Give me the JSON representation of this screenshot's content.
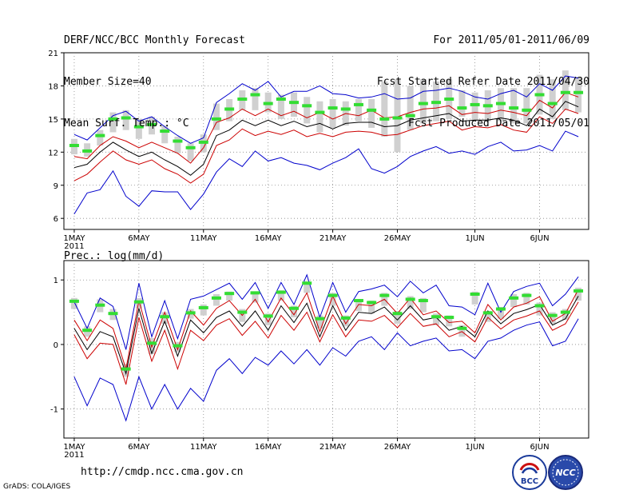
{
  "header": {
    "title": "DERF/NCC/BCC Monthly Forecast",
    "member_size": "Member Size=40",
    "variable": "Mean Surf. Temp.: °C",
    "period": "For 2011/05/01-2011/06/09",
    "refer_date": "Fcst Started Refer Date 2011/04/30",
    "produced_date": "Fcst Produced Date 2011/05/01"
  },
  "footer": {
    "url": "http://cmdp.ncc.cma.gov.cn",
    "credit": "GrADS: COLA/IGES",
    "logo_bcc": "BCC",
    "logo_ncc": "NCC"
  },
  "colors": {
    "ensemble_max_min": "#0000cc",
    "spread_band": "#cc0000",
    "ensemble_mean": "#000000",
    "observed_marker": "#33dd33",
    "member_range_bar": "#d0d0d0",
    "grid": "#888888"
  },
  "chart_data": [
    {
      "type": "line",
      "title": "Mean Surf. Temp.: °C",
      "x": [
        1,
        2,
        3,
        4,
        5,
        6,
        7,
        8,
        9,
        10,
        11,
        12,
        13,
        14,
        15,
        16,
        17,
        18,
        19,
        20,
        21,
        22,
        23,
        24,
        25,
        26,
        27,
        28,
        29,
        30,
        31,
        32,
        33,
        34,
        35,
        36,
        37,
        38,
        39,
        40
      ],
      "xtick_labels": [
        "1MAY",
        "6MAY",
        "11MAY",
        "16MAY",
        "21MAY",
        "26MAY",
        "1JUN",
        "6JUN"
      ],
      "xtick_positions": [
        1,
        6,
        11,
        16,
        21,
        26,
        32,
        37
      ],
      "year_label": "2011",
      "ylim": [
        5,
        21
      ],
      "yticks": [
        6,
        9,
        12,
        15,
        18,
        21
      ],
      "series": [
        {
          "name": "max",
          "values": [
            13.6,
            13.1,
            14.2,
            15.3,
            15.7,
            14.8,
            15.2,
            14.3,
            13.5,
            12.8,
            13.3,
            16.5,
            17.3,
            18.2,
            17.6,
            18.4,
            17.0,
            17.5,
            17.5,
            18.0,
            17.3,
            17.2,
            16.9,
            17.0,
            17.3,
            16.8,
            16.9,
            17.5,
            17.6,
            17.8,
            17.5,
            17.0,
            16.8,
            17.3,
            17.6,
            17.0,
            18.2,
            17.6,
            18.9,
            18.7
          ]
        },
        {
          "name": "upper",
          "values": [
            11.6,
            11.4,
            12.6,
            13.4,
            13.0,
            12.4,
            12.9,
            12.4,
            11.9,
            11.0,
            12.4,
            14.7,
            15.1,
            15.9,
            15.3,
            15.9,
            15.3,
            15.7,
            15.1,
            15.6,
            15.0,
            15.5,
            15.3,
            15.8,
            15.1,
            15.2,
            15.6,
            15.9,
            16.0,
            16.2,
            15.4,
            15.6,
            15.5,
            15.8,
            15.6,
            15.3,
            16.7,
            16.0,
            17.4,
            17.0
          ]
        },
        {
          "name": "mean",
          "values": [
            10.6,
            10.9,
            12.0,
            12.9,
            12.2,
            11.6,
            12.0,
            11.3,
            10.7,
            9.9,
            10.9,
            13.5,
            14.0,
            14.9,
            14.4,
            14.9,
            14.4,
            14.8,
            14.3,
            14.6,
            14.1,
            14.6,
            14.7,
            14.7,
            14.3,
            14.4,
            14.9,
            15.1,
            15.3,
            15.5,
            14.8,
            14.9,
            14.9,
            15.1,
            14.9,
            14.4,
            15.9,
            15.2,
            16.6,
            16.1
          ]
        },
        {
          "name": "lower",
          "values": [
            9.4,
            10.0,
            11.1,
            12.1,
            11.3,
            10.9,
            11.3,
            10.5,
            10.0,
            9.2,
            10.0,
            12.6,
            13.1,
            14.1,
            13.5,
            13.9,
            13.6,
            14.0,
            13.4,
            13.7,
            13.4,
            13.8,
            13.9,
            13.8,
            13.5,
            13.6,
            14.0,
            14.4,
            14.6,
            14.8,
            14.0,
            14.3,
            14.2,
            14.5,
            14.0,
            13.8,
            15.2,
            14.6,
            15.9,
            15.5
          ]
        },
        {
          "name": "min",
          "values": [
            6.4,
            8.3,
            8.6,
            10.3,
            8.0,
            7.1,
            8.5,
            8.4,
            8.4,
            6.8,
            8.2,
            10.2,
            11.4,
            10.7,
            12.1,
            11.2,
            11.5,
            11.0,
            10.8,
            10.4,
            11.0,
            11.5,
            12.3,
            10.5,
            10.1,
            10.7,
            11.6,
            12.1,
            12.5,
            11.9,
            12.1,
            11.8,
            12.5,
            12.9,
            12.1,
            12.2,
            12.6,
            12.1,
            13.9,
            13.4
          ]
        },
        {
          "name": "observed",
          "values": [
            12.6,
            12.1,
            13.5,
            15.0,
            15.1,
            14.3,
            14.5,
            13.9,
            13.0,
            12.4,
            12.9,
            15.0,
            15.9,
            16.8,
            17.2,
            16.4,
            16.8,
            16.5,
            16.2,
            15.6,
            16.0,
            15.9,
            16.3,
            15.8,
            15.0,
            15.1,
            15.3,
            16.4,
            16.5,
            16.8,
            16.0,
            16.3,
            16.2,
            16.4,
            16.0,
            15.8,
            17.2,
            16.4,
            17.4,
            17.4
          ]
        }
      ],
      "range_bars": [
        [
          11.8,
          13.2
        ],
        [
          11.6,
          12.8
        ],
        [
          12.6,
          14.0
        ],
        [
          13.8,
          15.6
        ],
        [
          14.0,
          15.8
        ],
        [
          13.2,
          15.0
        ],
        [
          13.6,
          15.2
        ],
        [
          12.8,
          14.4
        ],
        [
          11.9,
          13.4
        ],
        [
          11.2,
          12.8
        ],
        [
          12.0,
          13.6
        ],
        [
          14.0,
          16.4
        ],
        [
          14.8,
          16.8
        ],
        [
          15.8,
          17.6
        ],
        [
          15.8,
          17.8
        ],
        [
          15.6,
          17.4
        ],
        [
          15.0,
          17.2
        ],
        [
          15.2,
          17.4
        ],
        [
          14.6,
          17.0
        ],
        [
          13.8,
          16.6
        ],
        [
          14.2,
          16.8
        ],
        [
          14.4,
          16.6
        ],
        [
          14.8,
          16.8
        ],
        [
          14.2,
          16.8
        ],
        [
          13.4,
          18.4
        ],
        [
          12.0,
          18.6
        ],
        [
          14.0,
          18.0
        ],
        [
          14.6,
          18.6
        ],
        [
          14.8,
          18.4
        ],
        [
          15.0,
          18.6
        ],
        [
          15.2,
          17.6
        ],
        [
          14.8,
          17.4
        ],
        [
          14.8,
          17.6
        ],
        [
          14.8,
          17.8
        ],
        [
          14.6,
          17.8
        ],
        [
          14.6,
          17.8
        ],
        [
          15.4,
          19.0
        ],
        [
          15.0,
          18.6
        ],
        [
          15.8,
          19.4
        ],
        [
          15.6,
          18.8
        ]
      ]
    },
    {
      "type": "line",
      "title": "Prec.: log(mm/d)",
      "x": [
        1,
        2,
        3,
        4,
        5,
        6,
        7,
        8,
        9,
        10,
        11,
        12,
        13,
        14,
        15,
        16,
        17,
        18,
        19,
        20,
        21,
        22,
        23,
        24,
        25,
        26,
        27,
        28,
        29,
        30,
        31,
        32,
        33,
        34,
        35,
        36,
        37,
        38,
        39,
        40
      ],
      "xtick_labels": [
        "1MAY",
        "6MAY",
        "11MAY",
        "16MAY",
        "21MAY",
        "26MAY",
        "1JUN",
        "6JUN"
      ],
      "xtick_positions": [
        1,
        6,
        11,
        16,
        21,
        26,
        32,
        37
      ],
      "year_label": "2011",
      "ylim": [
        -1.45,
        1.3
      ],
      "yticks": [
        -1,
        0,
        1
      ],
      "series": [
        {
          "name": "max",
          "values": [
            0.66,
            0.25,
            0.72,
            0.59,
            -0.08,
            0.95,
            0.12,
            0.68,
            0.09,
            0.7,
            0.75,
            0.85,
            0.95,
            0.7,
            0.96,
            0.56,
            0.96,
            0.62,
            1.08,
            0.42,
            0.96,
            0.5,
            0.82,
            0.86,
            0.92,
            0.74,
            0.98,
            0.8,
            0.92,
            0.6,
            0.58,
            0.46,
            0.95,
            0.5,
            0.82,
            0.9,
            0.95,
            0.6,
            0.78,
            1.05
          ]
        },
        {
          "name": "upper",
          "values": [
            0.38,
            0.06,
            0.38,
            0.25,
            -0.38,
            0.68,
            -0.04,
            0.5,
            -0.08,
            0.52,
            0.3,
            0.56,
            0.68,
            0.45,
            0.7,
            0.35,
            0.72,
            0.46,
            0.8,
            0.2,
            0.75,
            0.32,
            0.62,
            0.6,
            0.7,
            0.48,
            0.72,
            0.46,
            0.52,
            0.34,
            0.36,
            0.18,
            0.62,
            0.38,
            0.58,
            0.64,
            0.74,
            0.36,
            0.48,
            0.85
          ]
        },
        {
          "name": "mean",
          "values": [
            0.25,
            -0.08,
            0.2,
            0.12,
            -0.45,
            0.56,
            -0.14,
            0.36,
            -0.18,
            0.38,
            0.18,
            0.42,
            0.52,
            0.28,
            0.52,
            0.22,
            0.6,
            0.34,
            0.64,
            0.12,
            0.6,
            0.22,
            0.5,
            0.48,
            0.58,
            0.38,
            0.6,
            0.38,
            0.42,
            0.22,
            0.28,
            0.12,
            0.52,
            0.32,
            0.48,
            0.54,
            0.62,
            0.3,
            0.4,
            0.75
          ]
        },
        {
          "name": "lower",
          "values": [
            0.15,
            -0.22,
            0.02,
            0.0,
            -0.62,
            0.42,
            -0.26,
            0.22,
            -0.38,
            0.22,
            0.06,
            0.3,
            0.4,
            0.14,
            0.36,
            0.1,
            0.45,
            0.22,
            0.5,
            0.04,
            0.46,
            0.12,
            0.38,
            0.36,
            0.45,
            0.26,
            0.48,
            0.28,
            0.32,
            0.12,
            0.2,
            0.04,
            0.42,
            0.24,
            0.38,
            0.44,
            0.52,
            0.22,
            0.32,
            0.66
          ]
        },
        {
          "name": "min",
          "values": [
            -0.5,
            -0.95,
            -0.52,
            -0.62,
            -1.18,
            -0.5,
            -1.0,
            -0.62,
            -1.0,
            -0.68,
            -0.88,
            -0.4,
            -0.22,
            -0.45,
            -0.2,
            -0.32,
            -0.1,
            -0.3,
            -0.08,
            -0.32,
            -0.05,
            -0.18,
            0.05,
            0.12,
            -0.08,
            0.18,
            -0.02,
            0.05,
            0.1,
            -0.1,
            -0.08,
            -0.22,
            0.05,
            0.1,
            0.22,
            0.3,
            0.35,
            -0.02,
            0.05,
            0.4
          ]
        },
        {
          "name": "observed",
          "values": [
            0.67,
            0.22,
            0.61,
            0.48,
            -0.38,
            0.66,
            0.02,
            0.43,
            -0.02,
            0.49,
            0.57,
            0.72,
            0.79,
            0.5,
            0.8,
            0.44,
            0.81,
            0.56,
            0.95,
            0.4,
            0.76,
            0.41,
            0.68,
            0.65,
            0.76,
            0.48,
            0.7,
            0.68,
            0.43,
            0.42,
            0.25,
            0.78,
            0.49,
            0.55,
            0.72,
            0.76,
            0.6,
            0.45,
            0.5,
            0.83
          ]
        }
      ],
      "range_bars": [
        [
          0.55,
          0.72
        ],
        [
          0.12,
          0.28
        ],
        [
          0.5,
          0.7
        ],
        [
          0.38,
          0.55
        ],
        [
          -0.5,
          -0.3
        ],
        [
          0.56,
          0.72
        ],
        [
          -0.15,
          0.1
        ],
        [
          0.32,
          0.5
        ],
        [
          -0.12,
          0.04
        ],
        [
          0.4,
          0.55
        ],
        [
          0.45,
          0.62
        ],
        [
          0.6,
          0.78
        ],
        [
          0.68,
          0.82
        ],
        [
          0.35,
          0.55
        ],
        [
          0.65,
          0.82
        ],
        [
          0.3,
          0.48
        ],
        [
          0.68,
          0.84
        ],
        [
          0.42,
          0.6
        ],
        [
          0.8,
          0.98
        ],
        [
          0.25,
          0.45
        ],
        [
          0.6,
          0.8
        ],
        [
          0.28,
          0.45
        ],
        [
          0.52,
          0.7
        ],
        [
          0.48,
          0.68
        ],
        [
          0.6,
          0.8
        ],
        [
          0.32,
          0.52
        ],
        [
          0.55,
          0.75
        ],
        [
          0.5,
          0.72
        ],
        [
          0.3,
          0.48
        ],
        [
          0.28,
          0.45
        ],
        [
          0.12,
          0.3
        ],
        [
          0.62,
          0.82
        ],
        [
          0.35,
          0.52
        ],
        [
          0.4,
          0.58
        ],
        [
          0.58,
          0.78
        ],
        [
          0.62,
          0.8
        ],
        [
          0.45,
          0.65
        ],
        [
          0.32,
          0.5
        ],
        [
          0.38,
          0.55
        ],
        [
          0.68,
          0.88
        ]
      ]
    }
  ]
}
